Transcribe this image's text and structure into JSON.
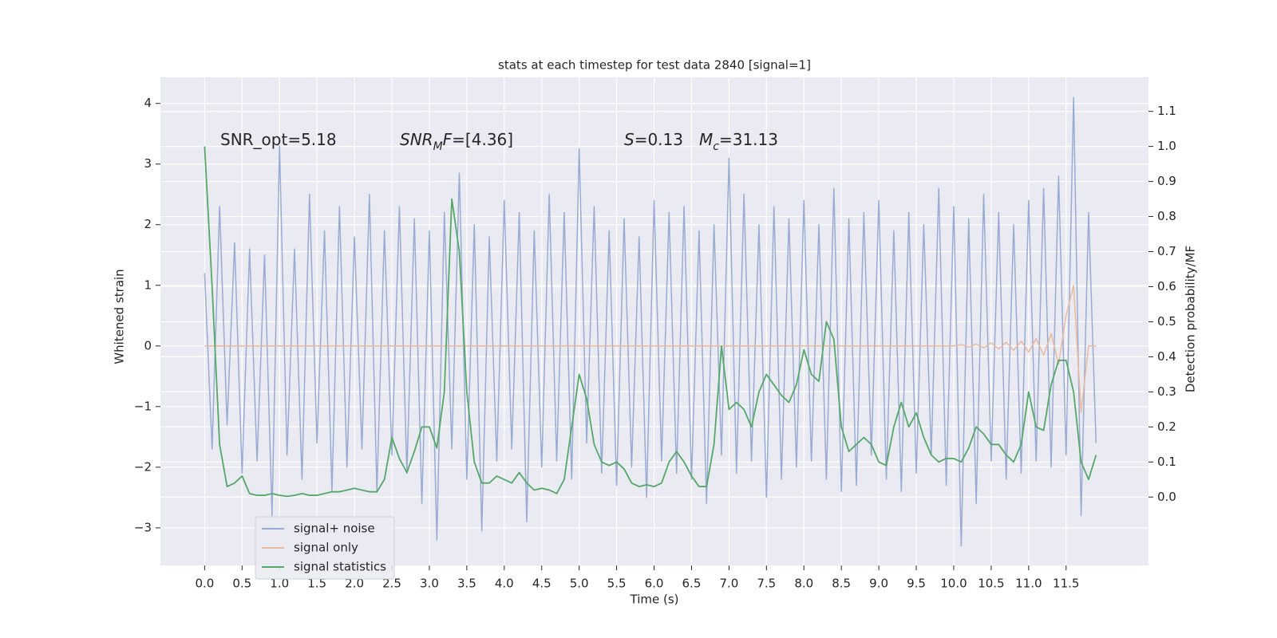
{
  "chart_data": {
    "type": "line",
    "title": "stats at each timestep for test data 2840 [signal=1]",
    "xlabel": "Time (s)",
    "ylabel": "Whitened strain",
    "y2label": "Detection probability/MF",
    "annotations": [
      [
        {
          "text": "SNR_opt=5.18"
        }
      ],
      [
        {
          "text": "SNR",
          "style": "italic"
        },
        {
          "text": "M",
          "style": "italic",
          "sub": true
        },
        {
          "text": "F",
          "style": "italic"
        },
        {
          "text": "=[4.36]"
        }
      ],
      [
        {
          "text": "S",
          "style": "italic"
        },
        {
          "text": "=0.13"
        }
      ],
      [
        {
          "text": "M",
          "style": "italic"
        },
        {
          "text": "c",
          "style": "italic",
          "sub": true
        },
        {
          "text": "=31.13"
        }
      ]
    ],
    "x": [
      0.0,
      0.1,
      0.2,
      0.3,
      0.4,
      0.5,
      0.6,
      0.7,
      0.8,
      0.9,
      1.0,
      1.1,
      1.2,
      1.3,
      1.4,
      1.5,
      1.6,
      1.7,
      1.8,
      1.9,
      2.0,
      2.1,
      2.2,
      2.3,
      2.4,
      2.5,
      2.6,
      2.7,
      2.8,
      2.9,
      3.0,
      3.1,
      3.2,
      3.3,
      3.4,
      3.5,
      3.6,
      3.7,
      3.8,
      3.9,
      4.0,
      4.1,
      4.2,
      4.3,
      4.4,
      4.5,
      4.6,
      4.7,
      4.8,
      4.9,
      5.0,
      5.1,
      5.2,
      5.3,
      5.4,
      5.5,
      5.6,
      5.7,
      5.8,
      5.9,
      6.0,
      6.1,
      6.2,
      6.3,
      6.4,
      6.5,
      6.6,
      6.7,
      6.8,
      6.9,
      7.0,
      7.1,
      7.2,
      7.3,
      7.4,
      7.5,
      7.6,
      7.7,
      7.8,
      7.9,
      8.0,
      8.1,
      8.2,
      8.3,
      8.4,
      8.5,
      8.6,
      8.7,
      8.8,
      8.9,
      9.0,
      9.1,
      9.2,
      9.3,
      9.4,
      9.5,
      9.6,
      9.7,
      9.8,
      9.9,
      10.0,
      10.1,
      10.2,
      10.3,
      10.4,
      10.5,
      10.6,
      10.7,
      10.8,
      10.9,
      11.0,
      11.1,
      11.2,
      11.3,
      11.4,
      11.5,
      11.6,
      11.7,
      11.8,
      11.9
    ],
    "series": [
      {
        "name": "signal+ noise",
        "color": "#9aabd3",
        "axis": "y",
        "values": [
          1.2,
          -1.7,
          2.3,
          -1.3,
          1.7,
          -2.1,
          1.6,
          -1.9,
          1.5,
          -2.8,
          3.3,
          -1.8,
          1.6,
          -2.2,
          2.5,
          -1.6,
          1.9,
          -2.4,
          2.3,
          -2.0,
          1.8,
          -1.7,
          2.5,
          -2.4,
          1.9,
          -1.8,
          2.3,
          -2.1,
          2.1,
          -2.6,
          1.9,
          -3.2,
          2.2,
          -1.7,
          2.85,
          -2.2,
          2.0,
          -3.05,
          1.8,
          -1.9,
          2.4,
          -1.7,
          2.2,
          -2.9,
          1.9,
          -2.0,
          2.5,
          -1.9,
          2.2,
          -2.2,
          3.25,
          -1.6,
          2.3,
          -2.1,
          1.9,
          -2.3,
          2.1,
          -2.0,
          1.8,
          -2.5,
          2.4,
          -1.9,
          2.2,
          -2.1,
          2.3,
          -2.2,
          1.9,
          -2.6,
          2.0,
          -1.8,
          3.1,
          -2.1,
          2.5,
          -1.9,
          2.0,
          -2.5,
          2.3,
          -2.2,
          2.1,
          -2.0,
          2.4,
          -1.9,
          2.0,
          -2.2,
          2.6,
          -2.4,
          2.1,
          -2.3,
          2.2,
          -1.8,
          2.4,
          -2.2,
          1.9,
          -2.4,
          2.2,
          -2.1,
          2.0,
          -1.8,
          2.6,
          -2.3,
          2.3,
          -3.3,
          2.1,
          -2.6,
          2.5,
          -1.9,
          2.2,
          -2.2,
          2.0,
          -2.1,
          2.4,
          -1.9,
          2.6,
          -2.0,
          2.8,
          -1.8,
          4.1,
          -2.8,
          2.2,
          -1.6
        ]
      },
      {
        "name": "signal only",
        "color": "#ebb99c",
        "axis": "y",
        "values": [
          0,
          0,
          0,
          0,
          0,
          0,
          0,
          0,
          0,
          0,
          0,
          0,
          0,
          0,
          0,
          0,
          0,
          0,
          0,
          0,
          0,
          0,
          0,
          0,
          0,
          0,
          0,
          0,
          0,
          0,
          0,
          0,
          0,
          0,
          0,
          0,
          0,
          0,
          0,
          0,
          0,
          0,
          0,
          0,
          0,
          0,
          0,
          0,
          0,
          0,
          0,
          0,
          0,
          0,
          0,
          0,
          0,
          0,
          0,
          0,
          0,
          0,
          0,
          0,
          0,
          0,
          0,
          0,
          0,
          0,
          0,
          0,
          0,
          0,
          0,
          0,
          0,
          0,
          0,
          0,
          0,
          0,
          0,
          0,
          0,
          0,
          0,
          0,
          0,
          0,
          0,
          0,
          0,
          0,
          0,
          0,
          0,
          0,
          0,
          0,
          0,
          0.02,
          -0.02,
          0.03,
          -0.03,
          0.05,
          -0.05,
          0.06,
          -0.07,
          0.08,
          -0.1,
          0.12,
          -0.15,
          0.2,
          -0.3,
          0.5,
          1.0,
          -1.1,
          0,
          0
        ]
      },
      {
        "name": "signal statistics",
        "color": "#55a868",
        "axis": "y2",
        "values": [
          1.0,
          0.6,
          0.15,
          0.03,
          0.04,
          0.06,
          0.01,
          0.005,
          0.005,
          0.01,
          0.005,
          0.002,
          0.005,
          0.01,
          0.005,
          0.005,
          0.01,
          0.015,
          0.015,
          0.02,
          0.025,
          0.02,
          0.015,
          0.015,
          0.05,
          0.17,
          0.11,
          0.07,
          0.13,
          0.2,
          0.2,
          0.14,
          0.3,
          0.85,
          0.7,
          0.3,
          0.1,
          0.04,
          0.04,
          0.06,
          0.05,
          0.04,
          0.07,
          0.04,
          0.02,
          0.025,
          0.02,
          0.01,
          0.05,
          0.2,
          0.35,
          0.28,
          0.15,
          0.1,
          0.09,
          0.1,
          0.08,
          0.04,
          0.03,
          0.035,
          0.03,
          0.04,
          0.1,
          0.13,
          0.1,
          0.06,
          0.03,
          0.03,
          0.15,
          0.43,
          0.25,
          0.27,
          0.25,
          0.2,
          0.3,
          0.35,
          0.32,
          0.29,
          0.27,
          0.32,
          0.42,
          0.35,
          0.33,
          0.5,
          0.45,
          0.2,
          0.13,
          0.15,
          0.17,
          0.15,
          0.1,
          0.09,
          0.2,
          0.27,
          0.2,
          0.24,
          0.17,
          0.12,
          0.1,
          0.11,
          0.11,
          0.1,
          0.14,
          0.2,
          0.18,
          0.15,
          0.15,
          0.12,
          0.1,
          0.15,
          0.3,
          0.2,
          0.19,
          0.32,
          0.39,
          0.39,
          0.3,
          0.1,
          0.05,
          0.12
        ]
      }
    ],
    "xlim": [
      -0.59,
      12.6
    ],
    "ylim": [
      -3.62,
      4.43
    ],
    "y2lim": [
      -0.195,
      1.197
    ],
    "xticks": [
      {
        "value": 0,
        "label": "0.0"
      },
      0.5,
      {
        "value": 1,
        "label": "1.0"
      },
      1.5,
      {
        "value": 2,
        "label": "2.0"
      },
      2.5,
      {
        "value": 3,
        "label": "3.0"
      },
      3.5,
      {
        "value": 4,
        "label": "4.0"
      },
      4.5,
      {
        "value": 5,
        "label": "5.0"
      },
      5.5,
      {
        "value": 6,
        "label": "6.0"
      },
      6.5,
      {
        "value": 7,
        "label": "7.0"
      },
      7.5,
      {
        "value": 8,
        "label": "8.0"
      },
      8.5,
      {
        "value": 9,
        "label": "9.0"
      },
      9.5,
      {
        "value": 10,
        "label": "10.0"
      },
      10.5,
      {
        "value": 11,
        "label": "11.0"
      },
      11.5
    ],
    "yticks": [
      {
        "value": -3,
        "label": "−3"
      },
      {
        "value": -2,
        "label": "−2"
      },
      {
        "value": -1,
        "label": "−1"
      },
      0,
      1,
      2,
      3,
      4
    ],
    "y2ticks": [
      {
        "value": 0,
        "label": "0.0"
      },
      0.1,
      0.2,
      0.3,
      0.4,
      0.5,
      0.6,
      0.7,
      0.8,
      0.9,
      {
        "value": 1,
        "label": "1.0"
      },
      1.1
    ],
    "grid": true,
    "legend": "lower left",
    "background": "#eaeaf2"
  }
}
